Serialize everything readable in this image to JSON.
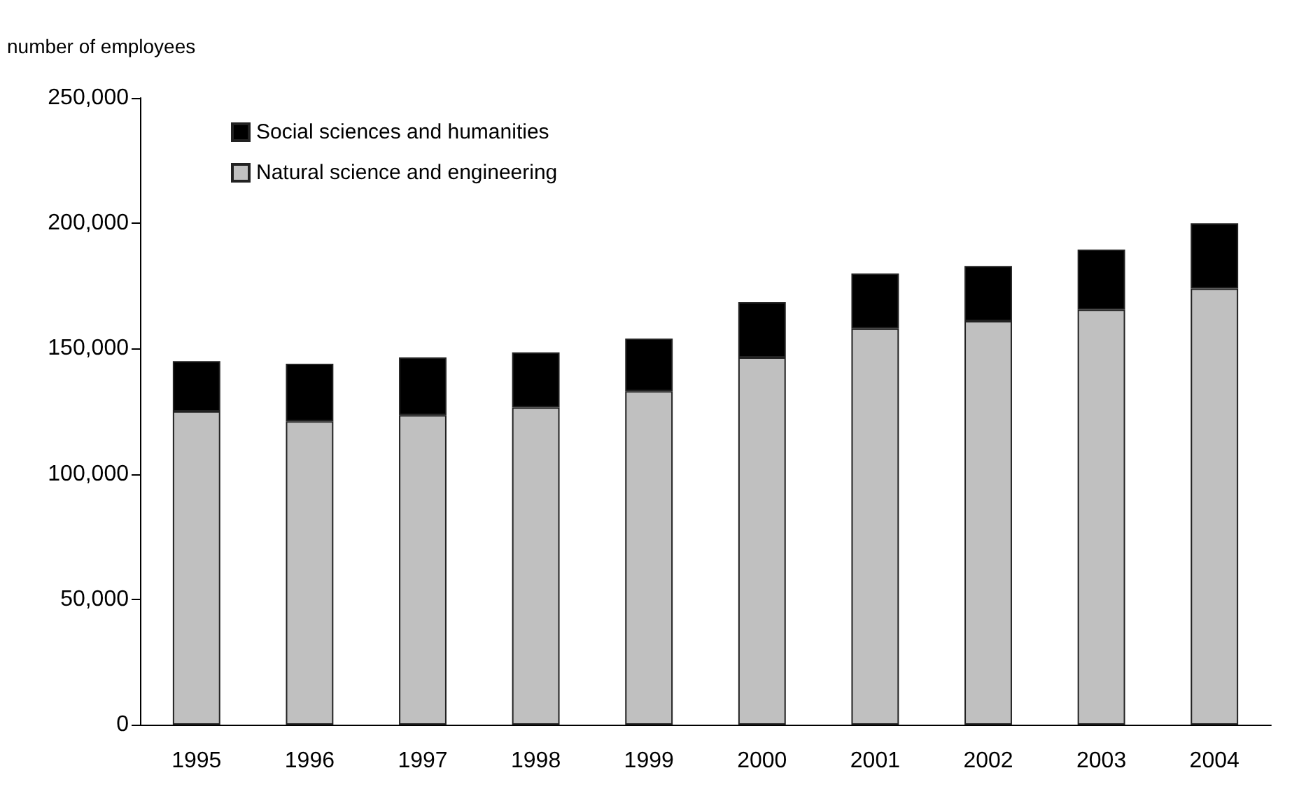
{
  "chart_data": {
    "type": "bar",
    "ylabel": "number of employees",
    "categories": [
      "1995",
      "1996",
      "1997",
      "1998",
      "1999",
      "2000",
      "2001",
      "2002",
      "2003",
      "2004"
    ],
    "stacked": true,
    "ylim": [
      0,
      250000
    ],
    "yticks": [
      0,
      {
        "value": 50000,
        "label": "50,000"
      },
      {
        "value": 100000,
        "label": "100,000"
      },
      {
        "value": 150000,
        "label": "150,000"
      },
      {
        "value": 200000,
        "label": "200,000"
      },
      {
        "value": 250000,
        "label": "250,000"
      }
    ],
    "grid": false,
    "legend": "top left",
    "series": [
      {
        "name": "Natural science and engineering",
        "color": "#c0c0c0",
        "values": [
          125000,
          121000,
          123500,
          126500,
          133000,
          146500,
          158000,
          161000,
          165500,
          174000
        ]
      },
      {
        "name": "Social sciences and humanities",
        "color": "#000000",
        "values": [
          20000,
          23000,
          23000,
          22000,
          21000,
          22000,
          22000,
          22000,
          24000,
          26000
        ]
      }
    ]
  }
}
